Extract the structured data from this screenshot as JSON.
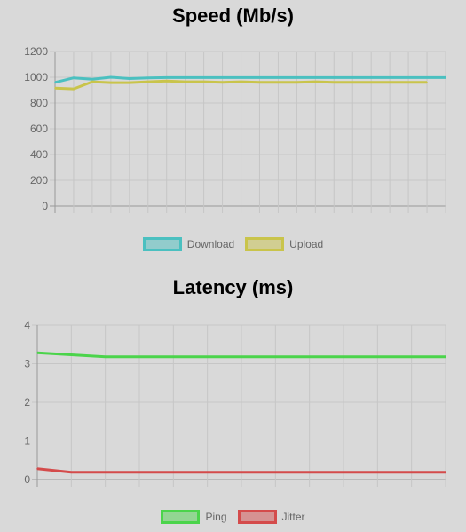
{
  "chart_data": [
    {
      "type": "line",
      "title": "Speed (Mb/s)",
      "xlabel": "",
      "ylabel": "",
      "ylim": [
        0,
        1200
      ],
      "yticks": [
        0,
        200,
        400,
        600,
        800,
        1000,
        1200
      ],
      "grid": true,
      "legend": "bottom",
      "series": [
        {
          "name": "Download",
          "color": "#4bc0c0",
          "values": [
            960,
            995,
            985,
            1000,
            990,
            995,
            997,
            997,
            997,
            997,
            997,
            997,
            997,
            997,
            997,
            997,
            997,
            997,
            997,
            997,
            997,
            997
          ]
        },
        {
          "name": "Upload",
          "color": "#c9c44b",
          "values": [
            915,
            910,
            965,
            958,
            958,
            965,
            970,
            965,
            965,
            960,
            965,
            960,
            960,
            960,
            965,
            960,
            960,
            960,
            960,
            960,
            960
          ]
        }
      ]
    },
    {
      "type": "line",
      "title": "Latency (ms)",
      "xlabel": "",
      "ylabel": "",
      "ylim": [
        0,
        4
      ],
      "yticks": [
        0,
        1,
        2,
        3,
        4
      ],
      "grid": true,
      "legend": "bottom",
      "series": [
        {
          "name": "Ping",
          "color": "#4bd44b",
          "values": [
            3.28,
            3.23,
            3.18,
            3.18,
            3.18,
            3.18,
            3.18,
            3.18,
            3.18,
            3.18,
            3.18,
            3.18,
            3.18
          ]
        },
        {
          "name": "Jitter",
          "color": "#d44b4b",
          "values": [
            0.28,
            0.19,
            0.19,
            0.19,
            0.19,
            0.19,
            0.19,
            0.19,
            0.19,
            0.19,
            0.19,
            0.19,
            0.19
          ]
        }
      ]
    }
  ]
}
